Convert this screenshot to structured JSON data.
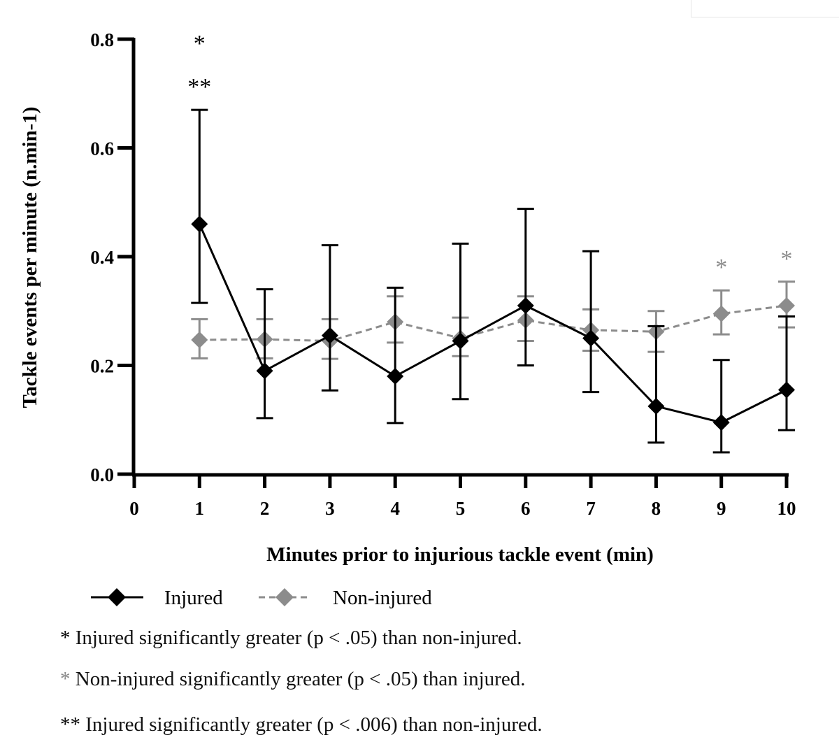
{
  "chart_data": {
    "type": "line",
    "xlabel": "Minutes prior to injurious tackle event (min)",
    "ylabel": "Tackle events per minute (n.min-1)",
    "xlim": [
      0,
      10
    ],
    "ylim": [
      0,
      0.8
    ],
    "x_ticks": [
      "0",
      "1",
      "2",
      "3",
      "4",
      "5",
      "6",
      "7",
      "8",
      "9",
      "10"
    ],
    "y_ticks": [
      "0.0",
      "0.2",
      "0.4",
      "0.6",
      "0.8"
    ],
    "grid": false,
    "series": [
      {
        "name": "Injured",
        "color": "#000000",
        "line_style": "solid",
        "marker": "diamond",
        "x": [
          1,
          2,
          3,
          4,
          5,
          6,
          7,
          8,
          9,
          10
        ],
        "values": [
          0.46,
          0.19,
          0.255,
          0.18,
          0.245,
          0.31,
          0.25,
          0.125,
          0.095,
          0.155
        ],
        "error_low": [
          0.315,
          0.103,
          0.154,
          0.094,
          0.138,
          0.2,
          0.151,
          0.058,
          0.04,
          0.081
        ],
        "error_high": [
          0.67,
          0.34,
          0.421,
          0.343,
          0.424,
          0.488,
          0.41,
          0.272,
          0.21,
          0.29
        ]
      },
      {
        "name": "Non-injured",
        "color": "#8c8c8c",
        "line_style": "dashed",
        "marker": "diamond",
        "x": [
          1,
          2,
          3,
          4,
          5,
          6,
          7,
          8,
          9,
          10
        ],
        "values": [
          0.247,
          0.248,
          0.245,
          0.28,
          0.25,
          0.283,
          0.265,
          0.262,
          0.295,
          0.31
        ],
        "error_low": [
          0.213,
          0.213,
          0.212,
          0.242,
          0.217,
          0.245,
          0.227,
          0.225,
          0.257,
          0.27
        ],
        "error_high": [
          0.285,
          0.285,
          0.285,
          0.327,
          0.288,
          0.327,
          0.303,
          0.3,
          0.338,
          0.354
        ]
      }
    ],
    "annotations": [
      {
        "x": 1,
        "text": "*",
        "color": "#000000",
        "level": 1
      },
      {
        "x": 1,
        "text": "**",
        "color": "#000000",
        "level": 0
      },
      {
        "x": 9,
        "text": "*",
        "color": "#8c8c8c",
        "level": 0
      },
      {
        "x": 10,
        "text": "*",
        "color": "#8c8c8c",
        "level": 0
      }
    ]
  },
  "legend": {
    "items": [
      {
        "label": "Injured",
        "color": "#000000"
      },
      {
        "label": "Non-injured",
        "color": "#8c8c8c"
      }
    ]
  },
  "notes": [
    {
      "mark": "*",
      "text": "Injured significantly greater (p < .05) than non-injured.",
      "mark_color": "#000000"
    },
    {
      "mark": "*",
      "text": "Non-injured significantly greater (p < .05) than injured.",
      "mark_color": "#8c8c8c"
    },
    {
      "mark": "**",
      "text": "Injured significantly greater (p < .006) than non-injured.",
      "mark_color": "#000000"
    }
  ]
}
